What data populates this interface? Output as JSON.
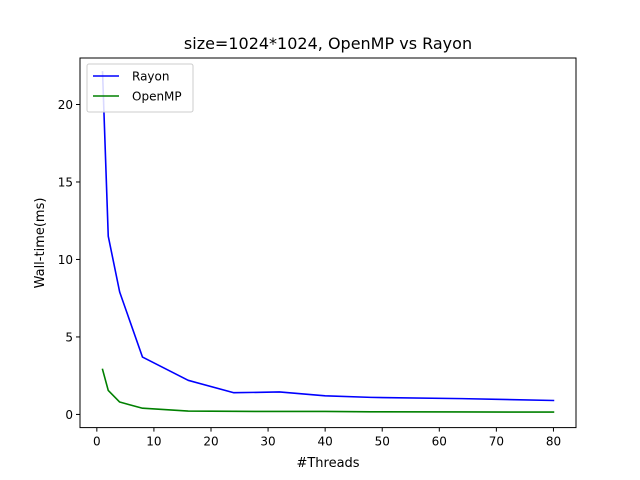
{
  "chart_data": {
    "type": "line",
    "title": "size=1024*1024, OpenMP vs Rayon",
    "xlabel": "#Threads",
    "ylabel": "Wall-time(ms)",
    "xlim": [
      -2.95,
      83.95
    ],
    "ylim": [
      -0.85,
      23.0
    ],
    "xticks": [
      0,
      10,
      20,
      30,
      40,
      50,
      60,
      70,
      80
    ],
    "yticks": [
      0,
      5,
      10,
      15,
      20
    ],
    "grid": false,
    "legend_position": "top-left",
    "series": [
      {
        "name": "Rayon",
        "color": "#0000ff",
        "x": [
          1,
          2,
          4,
          8,
          16,
          24,
          32,
          40,
          48,
          64,
          80
        ],
        "y": [
          22.1,
          11.5,
          7.9,
          3.7,
          2.2,
          1.4,
          1.45,
          1.2,
          1.1,
          1.02,
          0.9
        ]
      },
      {
        "name": "OpenMP",
        "color": "#008000",
        "x": [
          1,
          2,
          4,
          8,
          16,
          24,
          32,
          40,
          48,
          64,
          80
        ],
        "y": [
          2.9,
          1.55,
          0.8,
          0.4,
          0.22,
          0.2,
          0.19,
          0.19,
          0.17,
          0.16,
          0.15
        ]
      }
    ]
  }
}
